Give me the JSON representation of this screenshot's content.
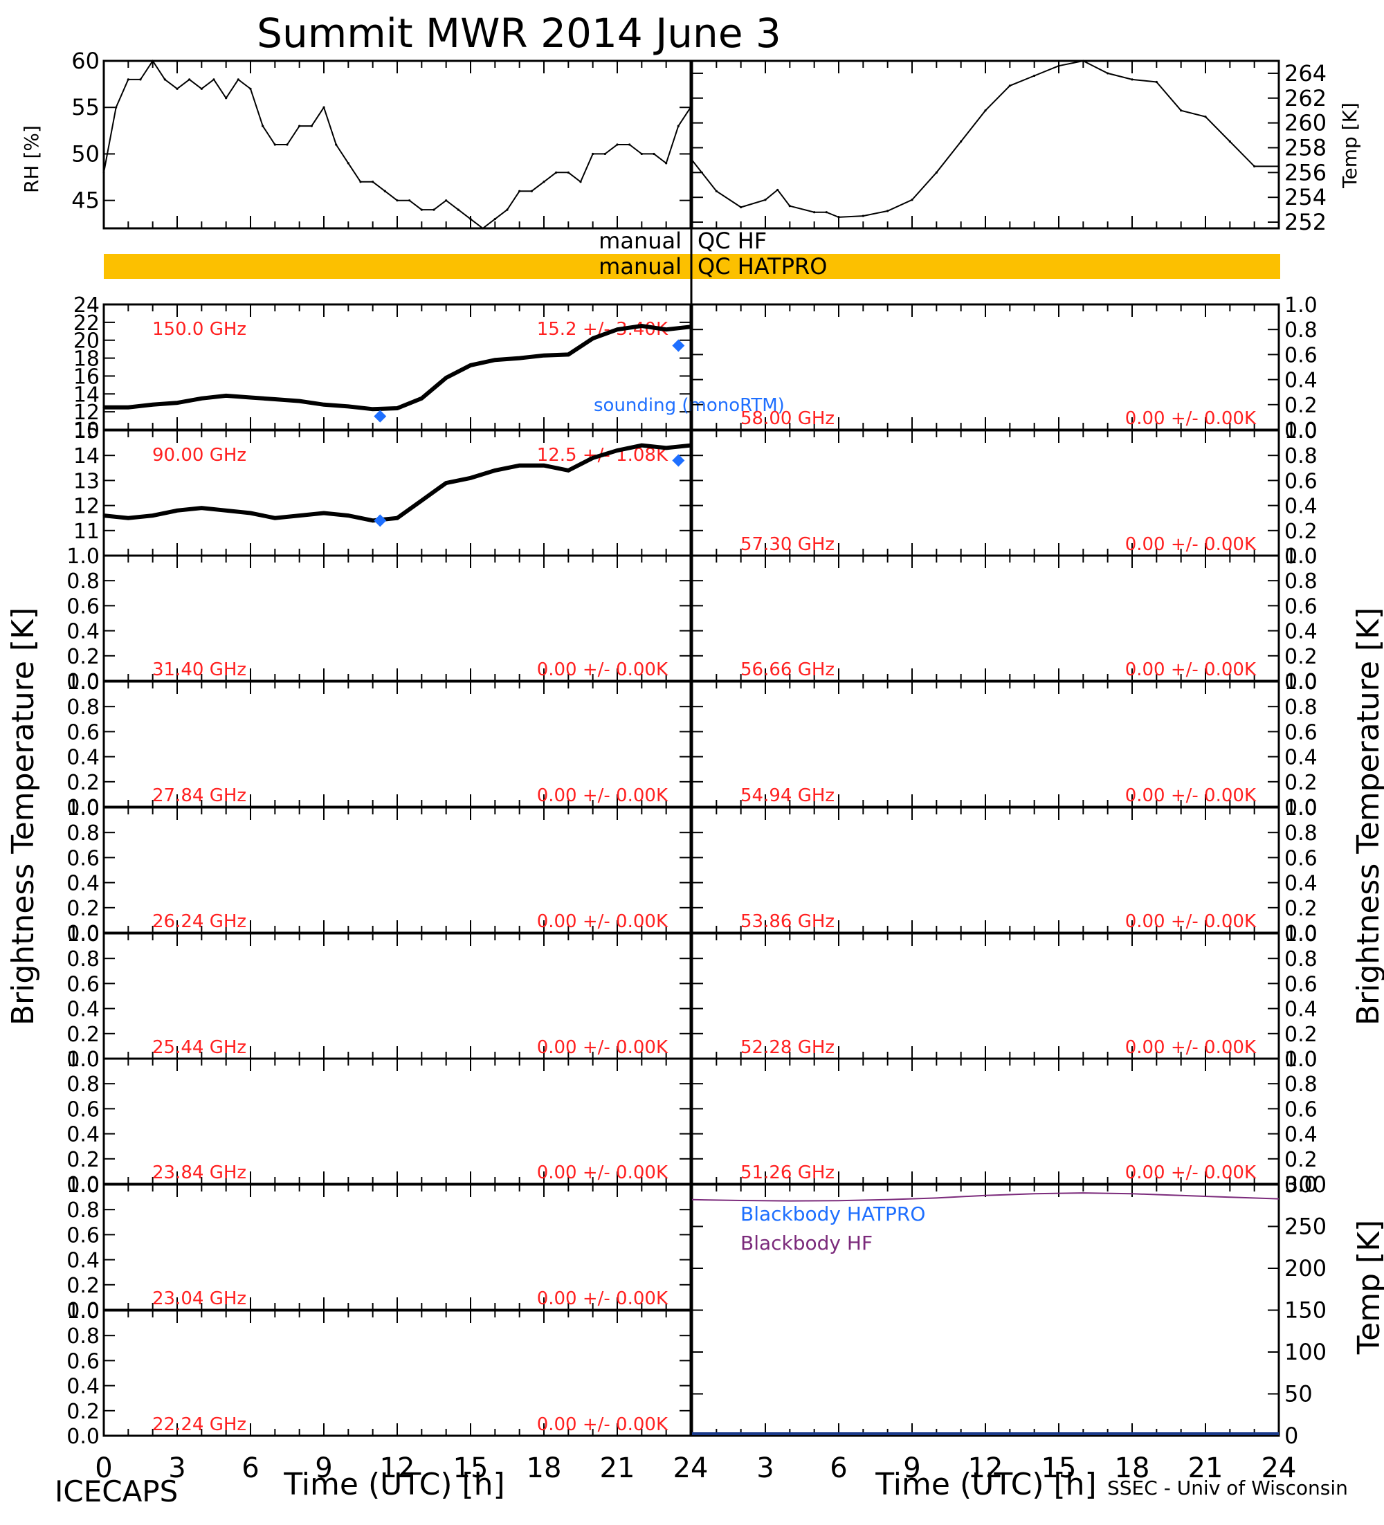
{
  "title": "Summit MWR 2014 June  3",
  "footer": {
    "left": "ICECAPS",
    "right": "SSEC - Univ of Wisconsin",
    "xlabel_left": "Time (UTC) [h]",
    "xlabel_right": "Time (UTC) [h]"
  },
  "axis_labels": {
    "rh": "RH [%]",
    "temp_top": "Temp [K]",
    "tb_left": "Brightness Temperature [K]",
    "tb_right": "Brightness Temperature [K]",
    "temp_bottom": "Temp [K]"
  },
  "qc": {
    "hf_label_left": "manual",
    "hf_label_right": "QC HF",
    "hatpro_label_left": "manual",
    "hatpro_label_right": "QC HATPRO",
    "hatpro_color": "#fcc000"
  },
  "x_ticks": [
    "0",
    "3",
    "6",
    "9",
    "12",
    "15",
    "18",
    "21",
    "24"
  ],
  "colors": {
    "data": "#000000",
    "label_red": "#ff2020",
    "sounding_blue": "#1e6fff",
    "blackbody_hf": "#7b2a7b"
  },
  "chart_data": [
    {
      "type": "line",
      "title": "",
      "ylabel": "RH [%]",
      "xlim": [
        0,
        24
      ],
      "ylim": [
        42,
        60
      ],
      "yticks": [
        45,
        50,
        55,
        60
      ],
      "x": [
        0,
        0.5,
        1,
        1.5,
        2,
        2.5,
        3,
        3.5,
        4,
        4.5,
        5,
        5.5,
        6,
        6.5,
        7,
        7.5,
        8,
        8.5,
        9,
        9.5,
        10,
        10.5,
        11,
        11.5,
        12,
        12.5,
        13,
        13.5,
        14,
        14.5,
        15,
        15.5,
        16,
        16.5,
        17,
        17.5,
        18,
        18.5,
        19,
        19.5,
        20,
        20.5,
        21,
        21.5,
        22,
        22.5,
        23,
        23.5,
        24
      ],
      "values": [
        48,
        55,
        58,
        58,
        60,
        58,
        57,
        58,
        57,
        58,
        56,
        58,
        57,
        53,
        51,
        51,
        53,
        53,
        55,
        51,
        49,
        47,
        47,
        46,
        45,
        45,
        44,
        44,
        45,
        44,
        43,
        42,
        43,
        44,
        46,
        46,
        47,
        48,
        48,
        47,
        50,
        50,
        51,
        51,
        50,
        50,
        49,
        53,
        55
      ]
    },
    {
      "type": "line",
      "title": "",
      "ylabel": "Temp [K]",
      "xlim": [
        0,
        24
      ],
      "ylim": [
        251.5,
        265
      ],
      "yticks": [
        252,
        254,
        256,
        258,
        260,
        262,
        264
      ],
      "x": [
        0,
        1,
        2,
        3,
        3.5,
        4,
        5,
        5.5,
        6,
        7,
        8,
        9,
        10,
        11,
        12,
        13,
        14,
        15,
        16,
        17,
        18,
        19,
        20,
        21,
        22,
        23,
        24
      ],
      "values": [
        257,
        254.5,
        253.2,
        253.8,
        254.6,
        253.3,
        252.8,
        252.8,
        252.4,
        252.5,
        252.9,
        253.8,
        256,
        258.5,
        261,
        263,
        263.8,
        264.6,
        265,
        264,
        263.5,
        263.3,
        261,
        260.5,
        258.5,
        256.5,
        256.5
      ]
    },
    {
      "type": "line",
      "title": "150.0 GHz",
      "annotation": "15.2 +/- 3.40K",
      "ylabel": "Brightness Temperature [K]",
      "xlim": [
        0,
        24
      ],
      "ylim": [
        10,
        24
      ],
      "yticks": [
        10,
        12,
        14,
        16,
        18,
        20,
        22,
        24
      ],
      "x": [
        0,
        1,
        2,
        3,
        4,
        5,
        6,
        7,
        8,
        9,
        10,
        11,
        12,
        13,
        14,
        15,
        16,
        17,
        18,
        19,
        20,
        21,
        22,
        23,
        24
      ],
      "values": [
        12.5,
        12.5,
        12.8,
        13,
        13.5,
        13.8,
        13.6,
        13.4,
        13.2,
        12.8,
        12.6,
        12.3,
        12.4,
        13.5,
        15.8,
        17.2,
        17.8,
        18,
        18.3,
        18.4,
        20.2,
        21.2,
        21.6,
        21.2,
        21.5
      ],
      "sounding": {
        "name": "sounding (monoRTM)",
        "points": [
          [
            11.3,
            11.5
          ],
          [
            23.5,
            19.4
          ]
        ]
      }
    },
    {
      "type": "line",
      "title": "90.00 GHz",
      "annotation": "12.5 +/- 1.08K",
      "ylabel": "Brightness Temperature [K]",
      "xlim": [
        0,
        24
      ],
      "ylim": [
        10,
        15
      ],
      "yticks": [
        11,
        12,
        13,
        14,
        15
      ],
      "x": [
        0,
        1,
        2,
        3,
        4,
        5,
        6,
        7,
        8,
        9,
        10,
        11,
        12,
        13,
        14,
        15,
        16,
        17,
        18,
        19,
        20,
        21,
        22,
        23,
        24
      ],
      "values": [
        11.6,
        11.5,
        11.6,
        11.8,
        11.9,
        11.8,
        11.7,
        11.5,
        11.6,
        11.7,
        11.6,
        11.4,
        11.5,
        12.2,
        12.9,
        13.1,
        13.4,
        13.6,
        13.6,
        13.4,
        13.9,
        14.2,
        14.4,
        14.3,
        14.4
      ],
      "sounding": {
        "name": "",
        "points": [
          [
            11.3,
            11.4
          ],
          [
            23.5,
            13.8
          ]
        ]
      }
    },
    {
      "type": "line",
      "title": "31.40 GHz",
      "annotation": "0.00 +/- 0.00K",
      "ylim": [
        0,
        1
      ],
      "yticks": [
        0,
        0.2,
        0.4,
        0.6,
        0.8,
        1.0
      ],
      "xlim": [
        0,
        24
      ],
      "x": [],
      "values": []
    },
    {
      "type": "line",
      "title": "27.84 GHz",
      "annotation": "0.00 +/- 0.00K",
      "ylim": [
        0,
        1
      ],
      "yticks": [
        0,
        0.2,
        0.4,
        0.6,
        0.8,
        1.0
      ],
      "xlim": [
        0,
        24
      ],
      "x": [],
      "values": []
    },
    {
      "type": "line",
      "title": "26.24 GHz",
      "annotation": "0.00 +/- 0.00K",
      "ylim": [
        0,
        1
      ],
      "yticks": [
        0,
        0.2,
        0.4,
        0.6,
        0.8,
        1.0
      ],
      "xlim": [
        0,
        24
      ],
      "x": [],
      "values": []
    },
    {
      "type": "line",
      "title": "25.44 GHz",
      "annotation": "0.00 +/- 0.00K",
      "ylim": [
        0,
        1
      ],
      "yticks": [
        0,
        0.2,
        0.4,
        0.6,
        0.8,
        1.0
      ],
      "xlim": [
        0,
        24
      ],
      "x": [],
      "values": []
    },
    {
      "type": "line",
      "title": "23.84 GHz",
      "annotation": "0.00 +/- 0.00K",
      "ylim": [
        0,
        1
      ],
      "yticks": [
        0,
        0.2,
        0.4,
        0.6,
        0.8,
        1.0
      ],
      "xlim": [
        0,
        24
      ],
      "x": [],
      "values": []
    },
    {
      "type": "line",
      "title": "23.04 GHz",
      "annotation": "0.00 +/- 0.00K",
      "ylim": [
        0,
        1
      ],
      "yticks": [
        0,
        0.2,
        0.4,
        0.6,
        0.8,
        1.0
      ],
      "xlim": [
        0,
        24
      ],
      "x": [],
      "values": []
    },
    {
      "type": "line",
      "title": "22.24 GHz",
      "annotation": "0.00 +/- 0.00K",
      "ylim": [
        0,
        1
      ],
      "yticks": [
        0,
        0.2,
        0.4,
        0.6,
        0.8,
        1.0
      ],
      "xlim": [
        0,
        24
      ],
      "x": [],
      "values": []
    },
    {
      "type": "line",
      "title": "58.00 GHz",
      "annotation": "0.00 +/- 0.00K",
      "ylim": [
        0,
        1
      ],
      "yticks": [
        0,
        0.2,
        0.4,
        0.6,
        0.8,
        1.0
      ],
      "xlim": [
        0,
        24
      ],
      "x": [],
      "values": []
    },
    {
      "type": "line",
      "title": "57.30 GHz",
      "annotation": "0.00 +/- 0.00K",
      "ylim": [
        0,
        1
      ],
      "yticks": [
        0,
        0.2,
        0.4,
        0.6,
        0.8,
        1.0
      ],
      "xlim": [
        0,
        24
      ],
      "x": [],
      "values": []
    },
    {
      "type": "line",
      "title": "56.66 GHz",
      "annotation": "0.00 +/- 0.00K",
      "ylim": [
        0,
        1
      ],
      "yticks": [
        0,
        0.2,
        0.4,
        0.6,
        0.8,
        1.0
      ],
      "xlim": [
        0,
        24
      ],
      "x": [],
      "values": []
    },
    {
      "type": "line",
      "title": "54.94 GHz",
      "annotation": "0.00 +/- 0.00K",
      "ylim": [
        0,
        1
      ],
      "yticks": [
        0,
        0.2,
        0.4,
        0.6,
        0.8,
        1.0
      ],
      "xlim": [
        0,
        24
      ],
      "x": [],
      "values": []
    },
    {
      "type": "line",
      "title": "53.86 GHz",
      "annotation": "0.00 +/- 0.00K",
      "ylim": [
        0,
        1
      ],
      "yticks": [
        0,
        0.2,
        0.4,
        0.6,
        0.8,
        1.0
      ],
      "xlim": [
        0,
        24
      ],
      "x": [],
      "values": []
    },
    {
      "type": "line",
      "title": "52.28 GHz",
      "annotation": "0.00 +/- 0.00K",
      "ylim": [
        0,
        1
      ],
      "yticks": [
        0,
        0.2,
        0.4,
        0.6,
        0.8,
        1.0
      ],
      "xlim": [
        0,
        24
      ],
      "x": [],
      "values": []
    },
    {
      "type": "line",
      "title": "51.26 GHz",
      "annotation": "0.00 +/- 0.00K",
      "ylim": [
        0,
        1
      ],
      "yticks": [
        0,
        0.2,
        0.4,
        0.6,
        0.8,
        1.0
      ],
      "xlim": [
        0,
        24
      ],
      "x": [],
      "values": []
    },
    {
      "type": "line",
      "title": "",
      "ylabel": "Temp [K]",
      "xlim": [
        0,
        24
      ],
      "ylim": [
        0,
        300
      ],
      "yticks": [
        0,
        50,
        100,
        150,
        200,
        250,
        300
      ],
      "series": [
        {
          "name": "Blackbody HATPRO",
          "x": [],
          "values": []
        },
        {
          "name": "Blackbody HF",
          "x": [
            0,
            2,
            4,
            6,
            8,
            10,
            12,
            14,
            16,
            18,
            20,
            22,
            24
          ],
          "values": [
            282,
            281,
            280.5,
            280.8,
            282,
            284,
            287,
            289,
            290,
            289,
            287,
            285,
            283
          ]
        }
      ]
    }
  ]
}
